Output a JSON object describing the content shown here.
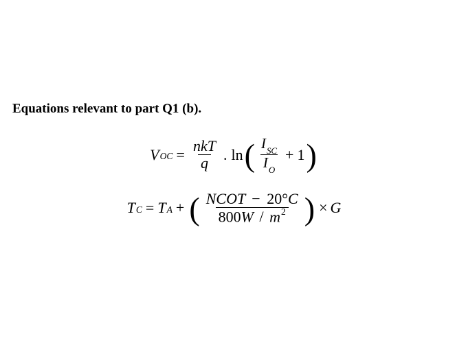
{
  "heading": "Equations relevant to part Q1 (b).",
  "eq1": {
    "lhs_var": "V",
    "lhs_sub": "OC",
    "eq": "=",
    "frac1_num_a": "nkT",
    "frac1_den": "q",
    "dot": ".",
    "ln": "ln",
    "lp": "(",
    "frac2_num_var": "I",
    "frac2_num_sub": "SC",
    "frac2_den_var": "I",
    "frac2_den_sub": "O",
    "plus": "+",
    "one": "1",
    "rp": ")"
  },
  "eq2": {
    "lhs_var": "T",
    "lhs_sub": "C",
    "eq": "=",
    "rhs_a_var": "T",
    "rhs_a_sub": "A",
    "plus": "+",
    "lp": "(",
    "frac_num_a": "NCOT",
    "frac_num_minus": "−",
    "frac_num_b_val": "20",
    "frac_num_b_deg": "°",
    "frac_num_b_unit": "C",
    "frac_den_val": "800",
    "frac_den_unitW": "W",
    "frac_den_slash": "/",
    "frac_den_unitm": "m",
    "frac_den_exp": "2",
    "rp": ")",
    "times": "×",
    "tail": "G"
  }
}
